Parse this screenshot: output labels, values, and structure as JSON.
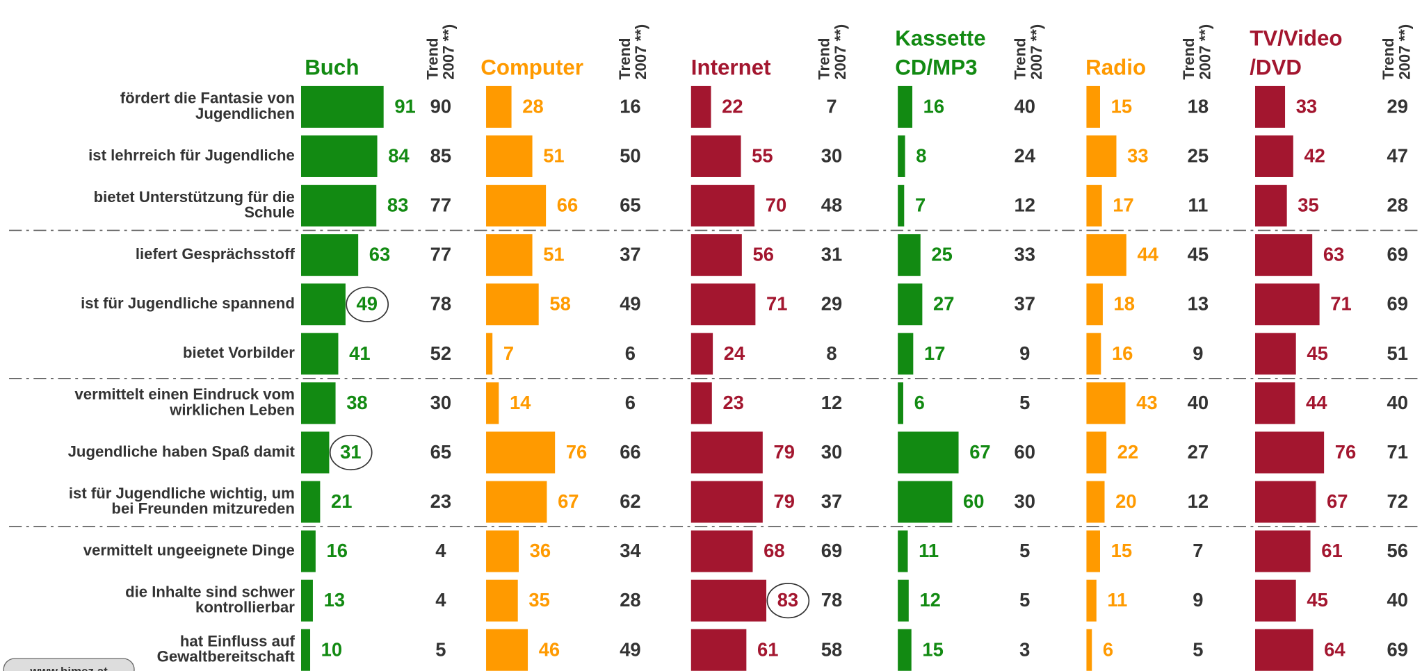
{
  "chart_data": {
    "type": "bar",
    "categories": [
      [
        "fördert die Fantasie von",
        "Jugendlichen"
      ],
      [
        "ist lehrreich für Jugendliche"
      ],
      [
        "bietet Unterstützung für die",
        "Schule"
      ],
      [
        "liefert Gesprächsstoff"
      ],
      [
        "ist für Jugendliche spannend"
      ],
      [
        "bietet Vorbilder"
      ],
      [
        "vermittelt einen Eindruck vom",
        "wirklichen Leben"
      ],
      [
        "Jugendliche haben Spaß damit"
      ],
      [
        "ist für Jugendliche wichtig, um",
        "bei Freunden mitzureden"
      ],
      [
        "vermittelt ungeeignete Dinge"
      ],
      [
        "die Inhalte sind schwer",
        "kontrollierbar"
      ],
      [
        "hat Einfluss auf",
        "Gewaltbereitschaft"
      ]
    ],
    "trend_label": [
      "Trend",
      "2007 **)"
    ],
    "xlim": [
      0,
      100
    ],
    "separators_after": [
      2,
      5,
      8
    ],
    "footer": "www.himez.at",
    "series": [
      {
        "name": [
          "Buch"
        ],
        "color": "#128a12",
        "values": [
          91,
          84,
          83,
          63,
          49,
          41,
          38,
          31,
          21,
          16,
          13,
          10
        ],
        "trend": [
          90,
          85,
          77,
          77,
          78,
          52,
          30,
          65,
          23,
          4,
          4,
          5
        ],
        "circled": [
          4,
          7
        ]
      },
      {
        "name": [
          "Computer"
        ],
        "color": "#ff9a00",
        "values": [
          28,
          51,
          66,
          51,
          58,
          7,
          14,
          76,
          67,
          36,
          35,
          46
        ],
        "trend": [
          16,
          50,
          65,
          37,
          49,
          6,
          6,
          66,
          62,
          34,
          28,
          49
        ],
        "circled": []
      },
      {
        "name": [
          "Internet"
        ],
        "color": "#a3162f",
        "values": [
          22,
          55,
          70,
          56,
          71,
          24,
          23,
          79,
          79,
          68,
          83,
          61
        ],
        "trend": [
          7,
          30,
          48,
          31,
          29,
          8,
          12,
          30,
          37,
          69,
          78,
          58
        ],
        "circled": [
          10
        ]
      },
      {
        "name": [
          "Kassette",
          "CD/MP3"
        ],
        "color": "#128a12",
        "values": [
          16,
          8,
          7,
          25,
          27,
          17,
          6,
          67,
          60,
          11,
          12,
          15
        ],
        "trend": [
          40,
          24,
          12,
          33,
          37,
          9,
          5,
          60,
          30,
          5,
          5,
          3
        ],
        "circled": []
      },
      {
        "name": [
          "Radio"
        ],
        "color": "#ff9a00",
        "values": [
          15,
          33,
          17,
          44,
          18,
          16,
          43,
          22,
          20,
          15,
          11,
          6
        ],
        "trend": [
          18,
          25,
          11,
          45,
          13,
          9,
          40,
          27,
          12,
          7,
          9,
          5
        ],
        "circled": []
      },
      {
        "name": [
          "TV/Video",
          "/DVD"
        ],
        "color": "#a3162f",
        "values": [
          33,
          42,
          35,
          63,
          71,
          45,
          44,
          76,
          67,
          61,
          45,
          64
        ],
        "trend": [
          29,
          47,
          28,
          69,
          69,
          51,
          40,
          71,
          72,
          56,
          40,
          69
        ],
        "circled": []
      }
    ]
  }
}
